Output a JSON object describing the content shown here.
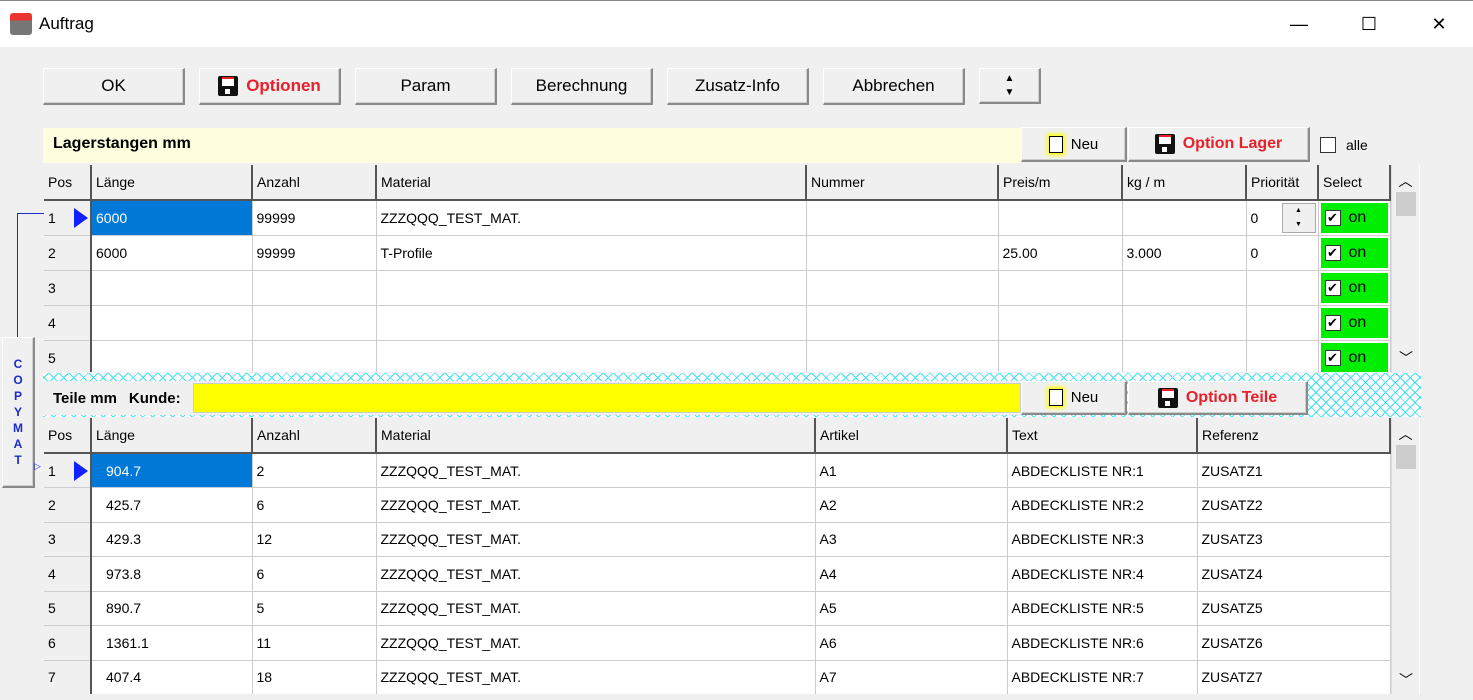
{
  "window": {
    "title": "Auftrag",
    "minimize": "—",
    "maximize": "☐",
    "close": "✕"
  },
  "toolbar": {
    "ok": "OK",
    "optionen": "Optionen",
    "param": "Param",
    "berechnung": "Berechnung",
    "zusatz": "Zusatz-Info",
    "abbrechen": "Abbrechen"
  },
  "lager": {
    "title": "Lagerstangen mm",
    "neu": "Neu",
    "option": "Option Lager",
    "alle": "alle",
    "columns": [
      "Pos",
      "Länge",
      "Anzahl",
      "Material",
      "Nummer",
      "Preis/m",
      "kg / m",
      "Priorität",
      "Select"
    ],
    "rows": [
      [
        "1",
        "6000",
        "99999",
        "ZZZQQQ_TEST_MAT.",
        "",
        "",
        "",
        "0",
        "on"
      ],
      [
        "2",
        "6000",
        "99999",
        "T-Profile",
        "",
        " 25.00",
        "  3.000",
        "0",
        "on"
      ],
      [
        "3",
        "",
        "",
        "",
        "",
        "",
        "",
        "",
        "on"
      ],
      [
        "4",
        "",
        "",
        "",
        "",
        "",
        "",
        "",
        "on"
      ],
      [
        "5",
        "",
        "",
        "",
        "",
        "",
        "",
        "",
        "on"
      ]
    ]
  },
  "teile": {
    "title": "Teile mm",
    "kunde_label": "Kunde:",
    "kunde_value": "",
    "neu": "Neu",
    "option": "Option Teile",
    "columns": [
      "Pos",
      "Länge",
      "Anzahl",
      "Material",
      "Artikel",
      "Text",
      "Referenz"
    ],
    "rows": [
      [
        "1",
        "904.7",
        "2",
        "ZZZQQQ_TEST_MAT.",
        "A1",
        "ABDECKLISTE NR:1",
        "ZUSATZ1"
      ],
      [
        "2",
        "425.7",
        "6",
        "ZZZQQQ_TEST_MAT.",
        "A2",
        "ABDECKLISTE NR:2",
        "ZUSATZ2"
      ],
      [
        "3",
        "429.3",
        "12",
        "ZZZQQQ_TEST_MAT.",
        "A3",
        "ABDECKLISTE NR:3",
        "ZUSATZ3"
      ],
      [
        "4",
        "973.8",
        "6",
        "ZZZQQQ_TEST_MAT.",
        "A4",
        "ABDECKLISTE NR:4",
        "ZUSATZ4"
      ],
      [
        "5",
        "890.7",
        "5",
        "ZZZQQQ_TEST_MAT.",
        "A5",
        "ABDECKLISTE NR:5",
        "ZUSATZ5"
      ],
      [
        "6",
        "1361.1",
        "11",
        "ZZZQQQ_TEST_MAT.",
        "A6",
        "ABDECKLISTE NR:6",
        "ZUSATZ6"
      ],
      [
        "7",
        "407.4",
        "18",
        "ZZZQQQ_TEST_MAT.",
        "A7",
        "ABDECKLISTE NR:7",
        "ZUSATZ7"
      ]
    ]
  },
  "copymat": "COPYMAT",
  "colors": {
    "select_on": "#00ee00",
    "kunde_bg": "#ffff00",
    "selection": "#0078d7",
    "button_red": "#e8202a"
  }
}
